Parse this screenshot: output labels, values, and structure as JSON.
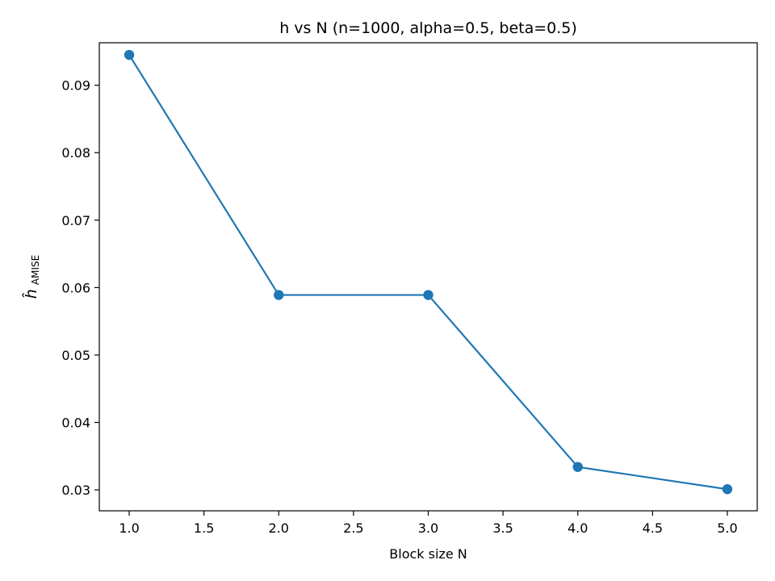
{
  "chart_data": {
    "type": "line",
    "title": "h vs N  (n=1000, alpha=0.5, beta=0.5)",
    "xlabel": "Block size N",
    "ylabel": {
      "symbol": "ĥ",
      "subscript": "AMISE"
    },
    "x": [
      1.0,
      2.0,
      3.0,
      4.0,
      5.0
    ],
    "series": [
      {
        "values": [
          0.0945,
          0.0589,
          0.0589,
          0.0334,
          0.0301
        ],
        "color": "#1f77b4",
        "marker": "circle"
      }
    ],
    "xlim": [
      0.8,
      5.2
    ],
    "ylim": [
      0.0269,
      0.0963
    ],
    "xticks": [
      "1.0",
      "1.5",
      "2.0",
      "2.5",
      "3.0",
      "3.5",
      "4.0",
      "4.5",
      "5.0"
    ],
    "yticks": [
      "0.03",
      "0.04",
      "0.05",
      "0.06",
      "0.07",
      "0.08",
      "0.09"
    ],
    "grid": false,
    "legend": false
  }
}
